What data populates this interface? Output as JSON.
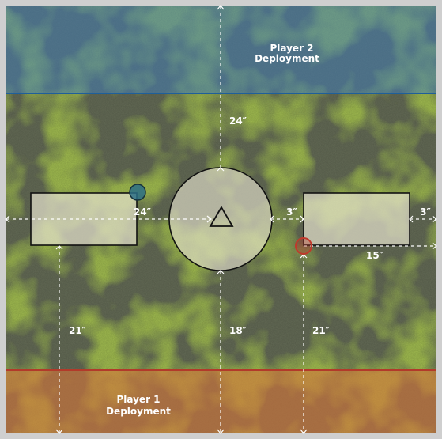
{
  "deployment": {
    "player2": {
      "line1": "Player 2",
      "line2": "Deployment",
      "line_color": "#1f5f9a",
      "tint": "#3f7fbf"
    },
    "player1": {
      "line1": "Player 1",
      "line2": "Deployment",
      "line_color": "#b23a2a",
      "tint": "#d9773a"
    }
  },
  "measurements": {
    "top_center": "24″",
    "left_zone_to_center": "24″",
    "gap_center_to_right_zone": "3″",
    "right_zone_to_edge": "3″",
    "right_marker_to_edge": "15″",
    "left_bottom": "21″",
    "center_bottom": "18″",
    "right_bottom": "21″"
  },
  "markers": {
    "blue_color": "#2c6f86",
    "red_color": "#c0392b"
  },
  "colors": {
    "terrain_dark": "#5f6b4a",
    "terrain_green": "#7f9a3c",
    "terrain_light": "#a9bd5a",
    "zone_fill": "#e3e1cc",
    "zone_stroke": "#111111"
  }
}
